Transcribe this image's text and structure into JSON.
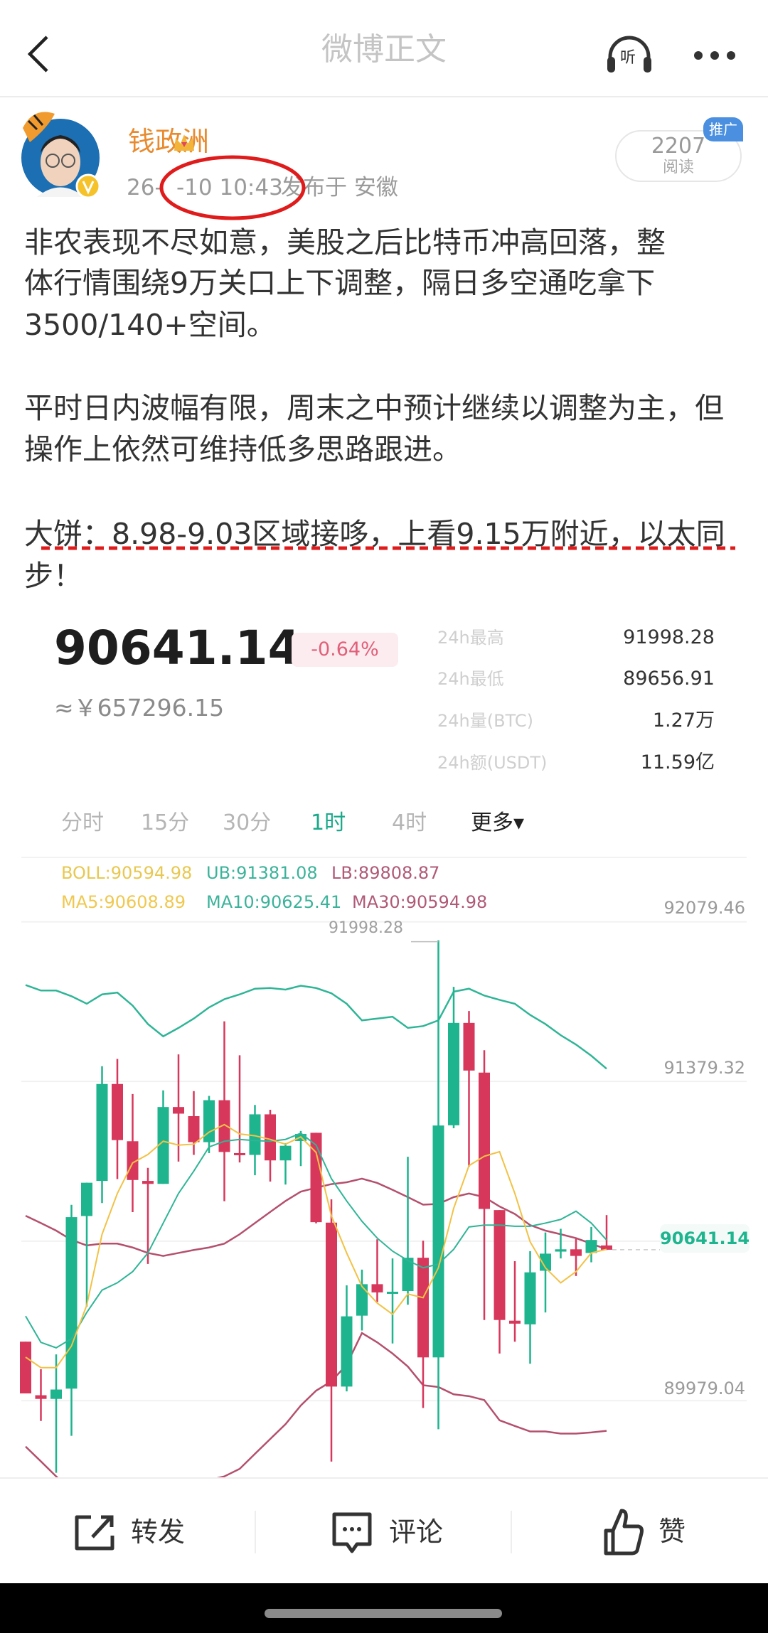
{
  "header": {
    "title": "微博正文",
    "back_icon": "chevron-left-icon",
    "listen_label": "听",
    "more_icon": "more-dots-icon"
  },
  "post": {
    "author": "钱政洲",
    "time_prefix": "26-",
    "time_suffix": "-10 10:43",
    "location": "发布于 安徽",
    "read_count": "2207",
    "read_label": "阅读",
    "promo_badge": "推广",
    "annotation_color": "#e01b1b",
    "lines": [
      "非农表现不尽如意，美股之后比特币冲高回落，整",
      "体行情围绕9万关口上下调整，隔日多空通吃拿下",
      "3500/140+空间。",
      "平时日内波幅有限，周末之中预计继续以调整为主，但",
      "操作上依然可维持低多思路跟进。",
      "大饼：8.98-9.03区域接哆，上看9.15万附近，以太同",
      "步！"
    ]
  },
  "market": {
    "price": "90641.14",
    "change": "-0.64%",
    "cny": "≈￥657296.15",
    "stats": [
      {
        "label": "24h最高",
        "value": "91998.28"
      },
      {
        "label": "24h最低",
        "value": "89656.91"
      },
      {
        "label": "24h量(BTC)",
        "value": "1.27万"
      },
      {
        "label": "24h额(USDT)",
        "value": "11.59亿"
      }
    ],
    "tabs": [
      {
        "label": "分时",
        "active": false
      },
      {
        "label": "15分",
        "active": false
      },
      {
        "label": "30分",
        "active": false
      },
      {
        "label": "1时",
        "active": true
      },
      {
        "label": "4时",
        "active": false
      },
      {
        "label": "更多▾",
        "active": false
      }
    ],
    "legend": {
      "boll": "BOLL:90594.98",
      "ub": "UB:91381.08",
      "lb": "LB:89808.87",
      "ma5": "MA5:90608.89",
      "ma10": "MA10:90625.41",
      "ma30": "MA30:90594.98"
    },
    "colors": {
      "up": "#1db48e",
      "down": "#d8375c",
      "ma5": "#f2c246",
      "ma10": "#2fb596",
      "band_upper": "#2fb596",
      "band_mid": "#b4506e",
      "band_lower": "#b4506e",
      "boll": "#e8c850",
      "ub": "#3bb39a",
      "lb": "#b05a78"
    }
  },
  "chart_data": {
    "type": "candlestick",
    "interval": "1时",
    "y_ticks": [
      "92079.46",
      "91379.32",
      "89979.04"
    ],
    "y_tick_values": [
      92079.46,
      91379.32,
      90679.18,
      89979.04
    ],
    "max_label": "91998.28",
    "last_price_label": "90641.14",
    "last_price": 90641.14,
    "ohlc": [
      [
        90238,
        90238,
        90011,
        90011
      ],
      [
        90003,
        90117,
        89890,
        89987
      ],
      [
        89987,
        90182,
        89663,
        90028
      ],
      [
        90032,
        90838,
        89825,
        90784
      ],
      [
        90789,
        90935,
        90392,
        90935
      ],
      [
        90943,
        91446,
        90846,
        91368
      ],
      [
        91368,
        91478,
        90951,
        91122
      ],
      [
        91117,
        91324,
        90806,
        90947
      ],
      [
        90943,
        91000,
        90579,
        90930
      ],
      [
        90930,
        91340,
        90930,
        91267
      ],
      [
        91267,
        91498,
        91028,
        91238
      ],
      [
        91227,
        91337,
        91057,
        91113
      ],
      [
        91113,
        91316,
        91065,
        91297
      ],
      [
        91297,
        91643,
        90854,
        91070
      ],
      [
        91065,
        91494,
        91024,
        91057
      ],
      [
        91057,
        91276,
        90968,
        91235
      ],
      [
        91235,
        91255,
        90940,
        91033
      ],
      [
        91033,
        91109,
        90927,
        91097
      ],
      [
        91118,
        91162,
        91008,
        91149
      ],
      [
        91154,
        91154,
        90757,
        90762
      ],
      [
        90760,
        90862,
        89712,
        90041
      ],
      [
        90041,
        90485,
        90020,
        90349
      ],
      [
        90352,
        90554,
        90287,
        90490
      ],
      [
        90490,
        90687,
        90412,
        90454
      ],
      [
        90449,
        90603,
        90230,
        90457
      ],
      [
        90460,
        91049,
        90400,
        90606
      ],
      [
        90606,
        90681,
        89947,
        90169
      ],
      [
        90169,
        91998.28,
        89854,
        91186
      ],
      [
        91187,
        91794,
        91174,
        91636
      ],
      [
        91636,
        91688,
        91006,
        91427
      ],
      [
        91418,
        91516,
        90333,
        90820
      ],
      [
        90815,
        90815,
        90186,
        90333
      ],
      [
        90330,
        90591,
        90238,
        90317
      ],
      [
        90314,
        90635,
        90141,
        90542
      ],
      [
        90549,
        90717,
        90366,
        90624
      ],
      [
        90633,
        90733,
        90603,
        90643
      ],
      [
        90643,
        90689,
        90526,
        90614
      ],
      [
        90627,
        90741,
        90586,
        90684
      ],
      [
        90660,
        90793,
        90640,
        90641.14
      ]
    ],
    "overlays": {
      "band_upper": [
        91802,
        91778,
        91778,
        91753,
        91720,
        91761,
        91769,
        91712,
        91631,
        91577,
        91614,
        91655,
        91704,
        91740,
        91761,
        91786,
        91789,
        91782,
        91799,
        91789,
        91766,
        91720,
        91647,
        91655,
        91663,
        91614,
        91622,
        91647,
        91773,
        91786,
        91756,
        91737,
        91720,
        91671,
        91631,
        91582,
        91541,
        91492,
        91435
      ],
      "band_mid": [
        90790,
        90758,
        90725,
        90684,
        90660,
        90668,
        90668,
        90651,
        90627,
        90614,
        90627,
        90640,
        90651,
        90668,
        90709,
        90758,
        90807,
        90855,
        90896,
        90913,
        90929,
        90937,
        90953,
        90934,
        90904,
        90872,
        90839,
        90842,
        90872,
        90888,
        90872,
        90831,
        90798,
        90749,
        90725,
        90709,
        90692,
        90668,
        90643
      ],
      "band_lower": [
        89778,
        89713,
        89647,
        89582,
        89533,
        89501,
        89501,
        89517,
        89550,
        89582,
        89599,
        89615,
        89631,
        89647,
        89680,
        89746,
        89811,
        89876,
        89958,
        90023,
        90064,
        90137,
        90276,
        90235,
        90186,
        90129,
        90047,
        90039,
        90007,
        89999,
        89982,
        89893,
        89868,
        89844,
        89844,
        89835,
        89835,
        89840,
        89847
      ],
      "ma5": [
        90170,
        90124,
        90124,
        90219,
        90398,
        90709,
        90888,
        91022,
        91059,
        91117,
        91100,
        91104,
        91157,
        91190,
        91149,
        91141,
        91125,
        91104,
        91136,
        91068,
        90790,
        90627,
        90480,
        90407,
        90358,
        90447,
        90431,
        90562,
        90823,
        91010,
        91051,
        91071,
        90888,
        90676,
        90562,
        90496,
        90545,
        90627,
        90643
      ],
      "ma10": [
        90350,
        90235,
        90211,
        90251,
        90366,
        90464,
        90496,
        90545,
        90627,
        90758,
        90888,
        90986,
        91092,
        91117,
        91125,
        91120,
        91117,
        91125,
        91152,
        91100,
        90953,
        90855,
        90766,
        90692,
        90635,
        90594,
        90562,
        90578,
        90643,
        90741,
        90749,
        90749,
        90744,
        90744,
        90758,
        90774,
        90810,
        90758,
        90684
      ]
    }
  },
  "actions": [
    {
      "label": "转发",
      "icon": "share-icon"
    },
    {
      "label": "评论",
      "icon": "comment-icon"
    },
    {
      "label": "赞",
      "icon": "thumbs-up-icon"
    }
  ]
}
